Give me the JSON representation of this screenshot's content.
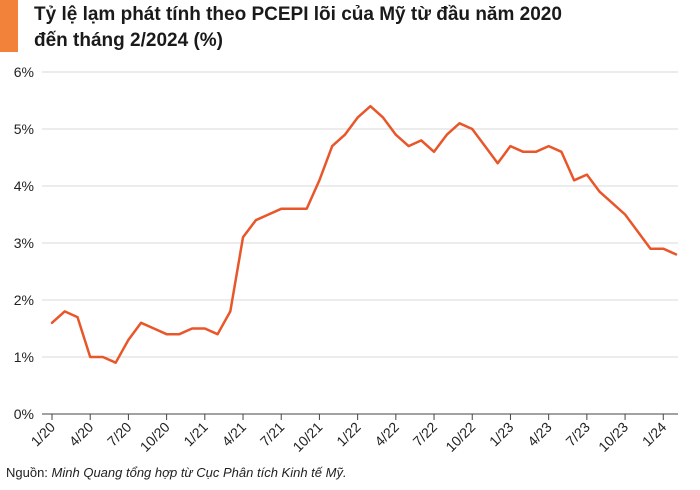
{
  "title_line1": "Tỷ lệ lạm phát tính theo PCEPI lõi của Mỹ từ đầu năm 2020",
  "title_line2": "đến tháng 2/2024 (%)",
  "source_prefix": "Nguồn:",
  "source_text": "Minh Quang tổng hợp từ Cục Phân tích Kinh tế Mỹ.",
  "colors": {
    "accent": "#f2813a",
    "line": "#e8562a",
    "grid": "#d9d9d9"
  },
  "chart_data": {
    "type": "line",
    "title": "Tỷ lệ lạm phát tính theo PCEPI lõi của Mỹ từ đầu năm 2020 đến tháng 2/2024 (%)",
    "xlabel": "",
    "ylabel": "",
    "ylim": [
      0,
      6
    ],
    "yticks": [
      "0%",
      "1%",
      "2%",
      "3%",
      "4%",
      "5%",
      "6%"
    ],
    "ytick_values": [
      0,
      1,
      2,
      3,
      4,
      5,
      6
    ],
    "grid": true,
    "legend": "none",
    "xtick_labels": [
      "1/20",
      "4/20",
      "7/20",
      "10/20",
      "1/21",
      "4/21",
      "7/21",
      "10/21",
      "1/22",
      "4/22",
      "7/22",
      "10/22",
      "1/23",
      "4/23",
      "7/23",
      "10/23",
      "1/24"
    ],
    "xtick_month_index": [
      0,
      3,
      6,
      9,
      12,
      15,
      18,
      21,
      24,
      27,
      30,
      33,
      36,
      39,
      42,
      45,
      48
    ],
    "x": [
      "1/20",
      "2/20",
      "3/20",
      "4/20",
      "5/20",
      "6/20",
      "7/20",
      "8/20",
      "9/20",
      "10/20",
      "11/20",
      "12/20",
      "1/21",
      "2/21",
      "3/21",
      "4/21",
      "5/21",
      "6/21",
      "7/21",
      "8/21",
      "9/21",
      "10/21",
      "11/21",
      "12/21",
      "1/22",
      "2/22",
      "3/22",
      "4/22",
      "5/22",
      "6/22",
      "7/22",
      "8/22",
      "9/22",
      "10/22",
      "11/22",
      "12/22",
      "1/23",
      "2/23",
      "3/23",
      "4/23",
      "5/23",
      "6/23",
      "7/23",
      "8/23",
      "9/23",
      "10/23",
      "11/23",
      "12/23",
      "1/24",
      "2/24"
    ],
    "series": [
      {
        "values": [
          1.6,
          1.8,
          1.7,
          1.0,
          1.0,
          0.9,
          1.3,
          1.6,
          1.5,
          1.4,
          1.4,
          1.5,
          1.5,
          1.4,
          1.8,
          3.1,
          3.4,
          3.5,
          3.6,
          3.6,
          3.6,
          4.1,
          4.7,
          4.9,
          5.2,
          5.4,
          5.2,
          4.9,
          4.7,
          4.8,
          4.6,
          4.9,
          5.1,
          5.0,
          4.7,
          4.4,
          4.7,
          4.6,
          4.6,
          4.7,
          4.6,
          4.1,
          4.2,
          3.9,
          3.7,
          3.5,
          3.2,
          2.9,
          2.9,
          2.8
        ]
      }
    ]
  }
}
